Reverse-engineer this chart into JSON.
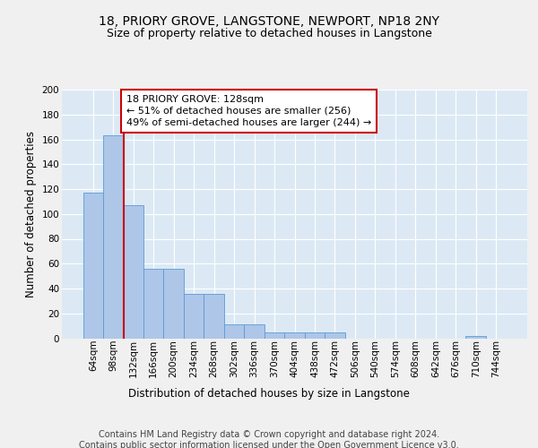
{
  "title1": "18, PRIORY GROVE, LANGSTONE, NEWPORT, NP18 2NY",
  "title2": "Size of property relative to detached houses in Langstone",
  "xlabel": "Distribution of detached houses by size in Langstone",
  "ylabel": "Number of detached properties",
  "categories": [
    "64sqm",
    "98sqm",
    "132sqm",
    "166sqm",
    "200sqm",
    "234sqm",
    "268sqm",
    "302sqm",
    "336sqm",
    "370sqm",
    "404sqm",
    "438sqm",
    "472sqm",
    "506sqm",
    "540sqm",
    "574sqm",
    "608sqm",
    "642sqm",
    "676sqm",
    "710sqm",
    "744sqm"
  ],
  "values": [
    117,
    163,
    107,
    56,
    56,
    36,
    36,
    11,
    11,
    5,
    5,
    5,
    5,
    0,
    0,
    0,
    0,
    0,
    0,
    2,
    0
  ],
  "bar_color": "#aec6e8",
  "bar_edge_color": "#5b9bd5",
  "bg_color": "#dce9f5",
  "grid_color": "#ffffff",
  "property_line_x": 2,
  "property_line_color": "#cc0000",
  "annotation_text": "18 PRIORY GROVE: 128sqm\n← 51% of detached houses are smaller (256)\n49% of semi-detached houses are larger (244) →",
  "annotation_box_color": "#ffffff",
  "annotation_box_edge_color": "#cc0000",
  "ylim": [
    0,
    200
  ],
  "yticks": [
    0,
    20,
    40,
    60,
    80,
    100,
    120,
    140,
    160,
    180,
    200
  ],
  "footer": "Contains HM Land Registry data © Crown copyright and database right 2024.\nContains public sector information licensed under the Open Government Licence v3.0.",
  "title1_fontsize": 10,
  "title2_fontsize": 9,
  "xlabel_fontsize": 8.5,
  "ylabel_fontsize": 8.5,
  "tick_fontsize": 7.5,
  "annotation_fontsize": 8,
  "footer_fontsize": 7
}
